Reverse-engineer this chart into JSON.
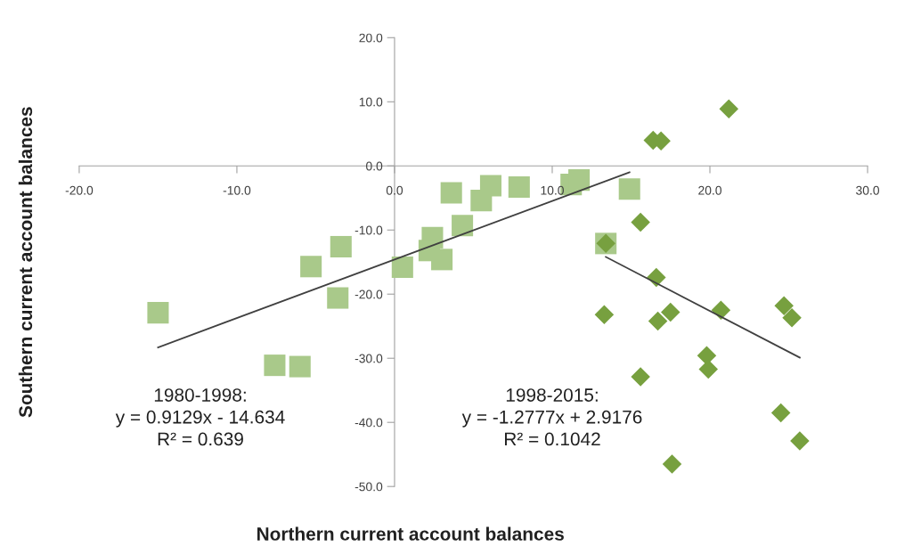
{
  "chart_data": {
    "type": "scatter",
    "xlabel": "Northern current account balances",
    "ylabel": "Southern current account balances",
    "xlim": [
      -20,
      30
    ],
    "ylim": [
      -50,
      20
    ],
    "xticks": [
      {
        "value": -20,
        "label": "-20.0"
      },
      {
        "value": -10,
        "label": "-10.0"
      },
      {
        "value": 0,
        "label": "0.0"
      },
      {
        "value": 10,
        "label": "10.0"
      },
      {
        "value": 20,
        "label": "20.0"
      },
      {
        "value": 30,
        "label": "30.0"
      }
    ],
    "yticks": [
      {
        "value": -50,
        "label": "-50.0"
      },
      {
        "value": -40,
        "label": "-40.0"
      },
      {
        "value": -30,
        "label": "-30.0"
      },
      {
        "value": -20,
        "label": "-20.0"
      },
      {
        "value": -10,
        "label": "-10.0"
      },
      {
        "value": 0,
        "label": "0.0"
      },
      {
        "value": 10,
        "label": "10.0"
      },
      {
        "value": 20,
        "label": "20.0"
      }
    ],
    "grid": false,
    "legend": false,
    "series": [
      {
        "color": "#a9c98a",
        "marker": "square",
        "x": [
          -15.0,
          -7.6,
          -6.0,
          -5.3,
          -3.4,
          -3.6,
          0.5,
          2.4,
          2.2,
          3.0,
          3.6,
          4.3,
          5.5,
          6.1,
          7.9,
          11.2,
          11.7,
          14.9,
          13.4
        ],
        "values": [
          -22.9,
          -31.1,
          -31.3,
          -15.7,
          -12.6,
          -20.6,
          -15.8,
          -11.2,
          -13.2,
          -14.6,
          -4.2,
          -9.3,
          -5.4,
          -3.1,
          -3.3,
          -2.9,
          -2.2,
          -3.6,
          -12.1
        ]
      },
      {
        "color": "#77a03f",
        "marker": "diamond",
        "x": [
          21.2,
          16.4,
          16.9,
          15.6,
          13.4,
          16.6,
          13.3,
          16.7,
          17.5,
          20.7,
          24.7,
          25.2,
          19.8,
          19.9,
          15.6,
          24.5,
          25.7,
          17.6
        ],
        "values": [
          8.9,
          4.0,
          3.9,
          -8.8,
          -12.1,
          -17.4,
          -23.2,
          -24.2,
          -22.8,
          -22.5,
          -21.8,
          -23.7,
          -29.6,
          -31.7,
          -32.9,
          -38.5,
          -42.9,
          -46.5
        ]
      },
      {
        "type": "line",
        "color": "#404040",
        "marker": "none",
        "x": [
          -15.0,
          14.9
        ],
        "values": [
          -28.3,
          -1.0
        ]
      },
      {
        "type": "line",
        "color": "#404040",
        "marker": "none",
        "x": [
          13.4,
          25.7
        ],
        "values": [
          -14.2,
          -29.9
        ]
      }
    ],
    "annotations": [
      "1980-1998:\ny = 0.9129x - 14.634\nR² = 0.639",
      "1998-2015:\ny = -1.2777x + 2.9176\nR² = 0.1042"
    ]
  }
}
